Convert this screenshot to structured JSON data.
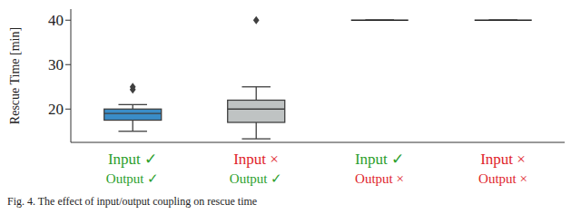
{
  "chart_data": {
    "type": "box",
    "y_label": "Rescue Time [min]",
    "caption": "Fig. 4. The effect of input/output coupling on rescue time",
    "categories": [
      "Input ✓\nOutput ✓",
      "Input ×\nOutput ✓",
      "Input ✓\nOutput ×",
      "Input ×\nOutput ×"
    ],
    "boxes": [
      {
        "whisker_low": 15,
        "q1": 17.5,
        "median": 19,
        "q3": 20,
        "whisker_high": 21,
        "outliers": [
          24.4,
          25
        ]
      },
      {
        "whisker_low": 13.3,
        "q1": 17,
        "median": 20,
        "q3": 22,
        "whisker_high": 25,
        "outliers": [
          40
        ]
      },
      {
        "whisker_low": 40,
        "q1": 40,
        "median": 40,
        "q3": 40,
        "whisker_high": 40,
        "outliers": []
      },
      {
        "whisker_low": 40,
        "q1": 40,
        "median": 40,
        "q3": 40,
        "whisker_high": 40,
        "outliers": []
      }
    ],
    "colors": [
      "#3a8dc8",
      "#bfc3c3",
      "#bfc3c3",
      "#bfc3c3"
    ],
    "ylim": [
      12.5,
      42.5
    ],
    "yticks": [
      20,
      30,
      40
    ],
    "grid": false
  }
}
